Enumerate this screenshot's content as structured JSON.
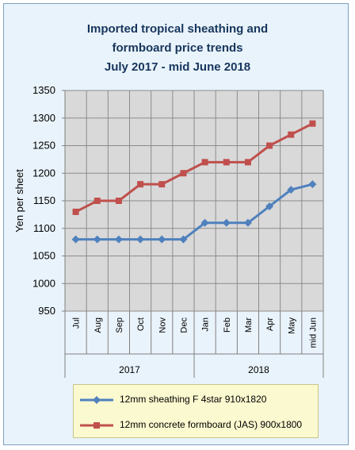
{
  "chart_data": {
    "type": "line",
    "title": "Imported tropical sheathing and formboard price trends July 2017 - mid June 2018",
    "title_lines": [
      "Imported tropical sheathing and",
      "formboard price trends",
      "July 2017 - mid June 2018"
    ],
    "ylabel": "Yen per sheet",
    "xlabel": "",
    "ylim": [
      950,
      1350
    ],
    "yticks": [
      950,
      1000,
      1050,
      1100,
      1150,
      1200,
      1250,
      1300,
      1350
    ],
    "categories": [
      "Jul",
      "Aug",
      "Sep",
      "Oct",
      "Nov",
      "Dec",
      "Jan",
      "Feb",
      "Mar",
      "Apr",
      "May",
      "mid Jun"
    ],
    "year_groups": [
      {
        "label": "2017",
        "count": 6
      },
      {
        "label": "2018",
        "count": 6
      }
    ],
    "grid": true,
    "legend_position": "bottom",
    "series": [
      {
        "name": "12mm sheathing F 4star 910x1820",
        "color": "#4f81bd",
        "marker": "diamond",
        "values": [
          1080,
          1080,
          1080,
          1080,
          1080,
          1080,
          1110,
          1110,
          1110,
          1140,
          1170,
          1180
        ]
      },
      {
        "name": "12mm concrete formboard (JAS) 900x1800",
        "color": "#c0504d",
        "marker": "square",
        "values": [
          1130,
          1150,
          1150,
          1180,
          1180,
          1200,
          1220,
          1220,
          1220,
          1250,
          1270,
          1290
        ]
      }
    ]
  },
  "colors": {
    "frame_background": "#e9f3fb",
    "plot_background": "#d9d9d9",
    "title": "#17365d",
    "legend_background": "#fbf9cf"
  }
}
